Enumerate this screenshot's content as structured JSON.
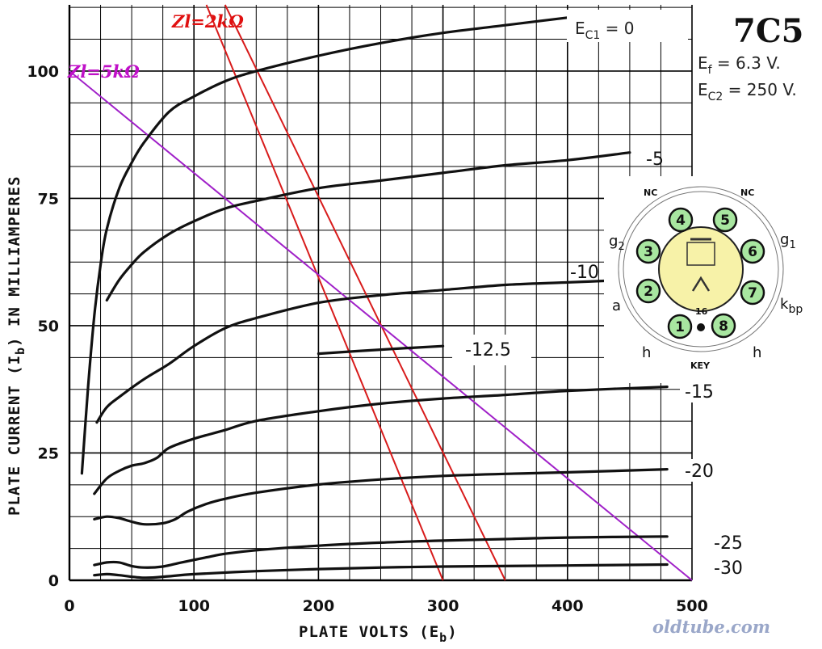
{
  "chart_data": {
    "type": "line",
    "title": "7C5",
    "conditions": [
      "Ef = 6.3 V.",
      "Ec2 = 250 V."
    ],
    "xlabel": "PLATE VOLTS (Eb)",
    "ylabel": "PLATE CURRENT (Ib) IN MILLIAMPERES",
    "xlim": [
      0,
      500
    ],
    "ylim": [
      0,
      113
    ],
    "x_ticks": [
      "0",
      "100",
      "200",
      "300",
      "400",
      "500"
    ],
    "x_tick_values": [
      0,
      100,
      200,
      300,
      400,
      500
    ],
    "y_ticks": [
      "0",
      "25",
      "50",
      "75",
      "100"
    ],
    "y_tick_values": [
      0,
      25,
      50,
      75,
      100
    ],
    "grid": true,
    "series": [
      {
        "name": "Ec1 = 0",
        "label": "0",
        "points": [
          [
            10,
            21
          ],
          [
            15,
            38
          ],
          [
            20,
            52
          ],
          [
            25,
            62
          ],
          [
            30,
            69
          ],
          [
            40,
            77
          ],
          [
            50,
            82
          ],
          [
            60,
            86
          ],
          [
            80,
            92
          ],
          [
            100,
            95
          ],
          [
            125,
            98
          ],
          [
            150,
            100
          ],
          [
            200,
            103
          ],
          [
            250,
            105.5
          ],
          [
            300,
            107.5
          ],
          [
            350,
            109
          ],
          [
            400,
            110.5
          ]
        ]
      },
      {
        "name": "-5",
        "label": "-5",
        "points": [
          [
            30,
            55
          ],
          [
            40,
            59
          ],
          [
            50,
            62
          ],
          [
            60,
            64.5
          ],
          [
            80,
            68
          ],
          [
            100,
            70.5
          ],
          [
            125,
            73
          ],
          [
            150,
            74.5
          ],
          [
            200,
            77
          ],
          [
            250,
            78.5
          ],
          [
            300,
            80
          ],
          [
            350,
            81.5
          ],
          [
            400,
            82.5
          ],
          [
            450,
            84
          ]
        ]
      },
      {
        "name": "-10",
        "label": "-10",
        "points": [
          [
            22,
            31
          ],
          [
            30,
            34
          ],
          [
            40,
            36
          ],
          [
            60,
            39.5
          ],
          [
            80,
            42.5
          ],
          [
            100,
            46
          ],
          [
            125,
            49.5
          ],
          [
            150,
            51.5
          ],
          [
            200,
            54.5
          ],
          [
            250,
            56
          ],
          [
            300,
            57
          ],
          [
            350,
            58
          ],
          [
            400,
            58.5
          ],
          [
            450,
            59
          ]
        ]
      },
      {
        "name": "-12.5",
        "label": "-12.5",
        "points": [
          [
            200,
            44.5
          ],
          [
            250,
            45.3
          ],
          [
            300,
            46
          ]
        ]
      },
      {
        "name": "-15",
        "label": "-15",
        "points": [
          [
            20,
            17
          ],
          [
            30,
            20
          ],
          [
            40,
            21.5
          ],
          [
            50,
            22.5
          ],
          [
            60,
            23
          ],
          [
            70,
            24
          ],
          [
            80,
            26
          ],
          [
            100,
            27.8
          ],
          [
            125,
            29.5
          ],
          [
            150,
            31.3
          ],
          [
            200,
            33.2
          ],
          [
            250,
            34.7
          ],
          [
            300,
            35.7
          ],
          [
            350,
            36.4
          ],
          [
            400,
            37.2
          ],
          [
            480,
            38
          ]
        ]
      },
      {
        "name": "-20",
        "label": "-20",
        "points": [
          [
            20,
            12
          ],
          [
            30,
            12.5
          ],
          [
            40,
            12.2
          ],
          [
            50,
            11.5
          ],
          [
            60,
            11
          ],
          [
            75,
            11.2
          ],
          [
            85,
            12
          ],
          [
            95,
            13.5
          ],
          [
            110,
            15
          ],
          [
            125,
            16
          ],
          [
            150,
            17.2
          ],
          [
            200,
            18.8
          ],
          [
            250,
            19.8
          ],
          [
            300,
            20.5
          ],
          [
            350,
            20.9
          ],
          [
            400,
            21.2
          ],
          [
            480,
            21.8
          ]
        ]
      },
      {
        "name": "-25",
        "label": "-25",
        "points": [
          [
            20,
            3
          ],
          [
            30,
            3.5
          ],
          [
            40,
            3.5
          ],
          [
            50,
            2.8
          ],
          [
            60,
            2.5
          ],
          [
            75,
            2.7
          ],
          [
            90,
            3.5
          ],
          [
            110,
            4.5
          ],
          [
            125,
            5.2
          ],
          [
            150,
            5.9
          ],
          [
            200,
            6.8
          ],
          [
            250,
            7.4
          ],
          [
            300,
            7.8
          ],
          [
            350,
            8.1
          ],
          [
            400,
            8.4
          ],
          [
            480,
            8.6
          ]
        ]
      },
      {
        "name": "-30",
        "label": "-30",
        "points": [
          [
            20,
            1
          ],
          [
            30,
            1.2
          ],
          [
            40,
            1
          ],
          [
            60,
            0.5
          ],
          [
            80,
            0.8
          ],
          [
            100,
            1.2
          ],
          [
            150,
            1.8
          ],
          [
            200,
            2.2
          ],
          [
            250,
            2.5
          ],
          [
            300,
            2.7
          ],
          [
            400,
            2.9
          ],
          [
            480,
            3.1
          ]
        ]
      }
    ],
    "load_lines": [
      {
        "name": "Zl=2kΩ",
        "color": "#d81b1b",
        "points": [
          [
            110,
            113
          ],
          [
            300,
            0
          ]
        ]
      },
      {
        "name": "Zl=2kΩ (2)",
        "color": "#d81b1b",
        "points": [
          [
            125,
            113
          ],
          [
            350,
            0
          ]
        ]
      },
      {
        "name": "Zl=5kΩ",
        "color": "#a020c8",
        "points": [
          [
            0,
            100
          ],
          [
            500,
            0
          ]
        ]
      }
    ],
    "annotations": [
      "Zl=2kΩ",
      "Zl=5kΩ"
    ]
  },
  "legend_box": {
    "ec1_prefix": "E",
    "ec1_sub": "C1",
    "ec1_value": " = 0",
    "tube_name": "7C5",
    "ef_prefix": "E",
    "ef_sub": "f",
    "ef_value": " = 6.3 V.",
    "ec2_prefix": "E",
    "ec2_sub": "C2",
    "ec2_value": " = 250 V."
  },
  "axis_text": {
    "x_title_main": "PLATE VOLTS (E",
    "x_title_sub": "b",
    "x_title_end": ")",
    "y_title_main": "PLATE CURRENT (I",
    "y_title_sub": "b",
    "y_title_end": ") IN MILLIAMPERES"
  },
  "load_labels": {
    "zl2": "Zl=2kΩ",
    "zl5": "Zl=5kΩ",
    "zl2_color": "#e01010",
    "zl5_color": "#c010c8"
  },
  "base_diagram": {
    "top_left": "NC",
    "top_right": "NC",
    "g2": "g",
    "g2_sub": "2",
    "g1": "g",
    "g1_sub": "1",
    "a": "a",
    "k": "k",
    "k_sub": "bp",
    "h_left": "h",
    "h_right": "h",
    "key": "KEY",
    "center": "16",
    "pins": [
      "1",
      "2",
      "3",
      "4",
      "5",
      "6",
      "7",
      "8"
    ],
    "pin_fill": "#a8e6a0",
    "body_fill": "#f7f2a8"
  },
  "watermark": "oldtube.com"
}
